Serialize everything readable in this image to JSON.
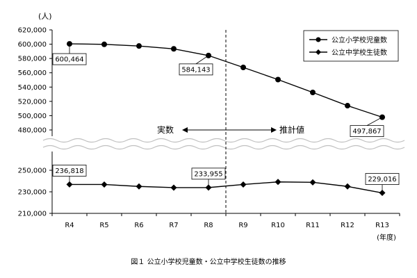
{
  "chart_data": {
    "type": "line",
    "unit_label": "(人)",
    "x_unit_label": "(年度)",
    "categories": [
      "R4",
      "R5",
      "R6",
      "R7",
      "R8",
      "R9",
      "R10",
      "R11",
      "R12",
      "R13"
    ],
    "series": [
      {
        "name": "公立小学校児童数",
        "marker": "circle",
        "values": [
          600464,
          599800,
          597500,
          593500,
          584143,
          567500,
          550500,
          532500,
          514000,
          497867
        ]
      },
      {
        "name": "公立中学校生徒数",
        "marker": "diamond",
        "values": [
          236818,
          236800,
          235000,
          233900,
          233955,
          236800,
          239200,
          238800,
          235000,
          229016
        ]
      }
    ],
    "y_upper": {
      "ticks": [
        480000,
        500000,
        520000,
        540000,
        560000,
        580000,
        600000,
        620000
      ],
      "tick_labels": [
        "480,000",
        "500,000",
        "520,000",
        "540,000",
        "560,000",
        "580,000",
        "600,000",
        "620,000"
      ],
      "ylim": [
        480000,
        620000
      ]
    },
    "y_lower": {
      "ticks": [
        210000,
        230000,
        250000
      ],
      "tick_labels": [
        "210,000",
        "230,000",
        "250,000"
      ],
      "ylim": [
        210000,
        250000
      ]
    },
    "data_labels": [
      {
        "series": 0,
        "index": 0,
        "text": "600,464"
      },
      {
        "series": 0,
        "index": 4,
        "text": "584,143"
      },
      {
        "series": 0,
        "index": 9,
        "text": "497,867"
      },
      {
        "series": 1,
        "index": 0,
        "text": "236,818"
      },
      {
        "series": 1,
        "index": 4,
        "text": "233,955"
      },
      {
        "series": 1,
        "index": 9,
        "text": "229,016"
      }
    ],
    "annotations": {
      "actual": "実数",
      "estimate": "推計値"
    },
    "divider_between": [
      "R8",
      "R9"
    ],
    "legend_position": "top-right",
    "grid": false
  },
  "caption": "図１ 公立小学校児童数・公立中学校生徒数の推移"
}
